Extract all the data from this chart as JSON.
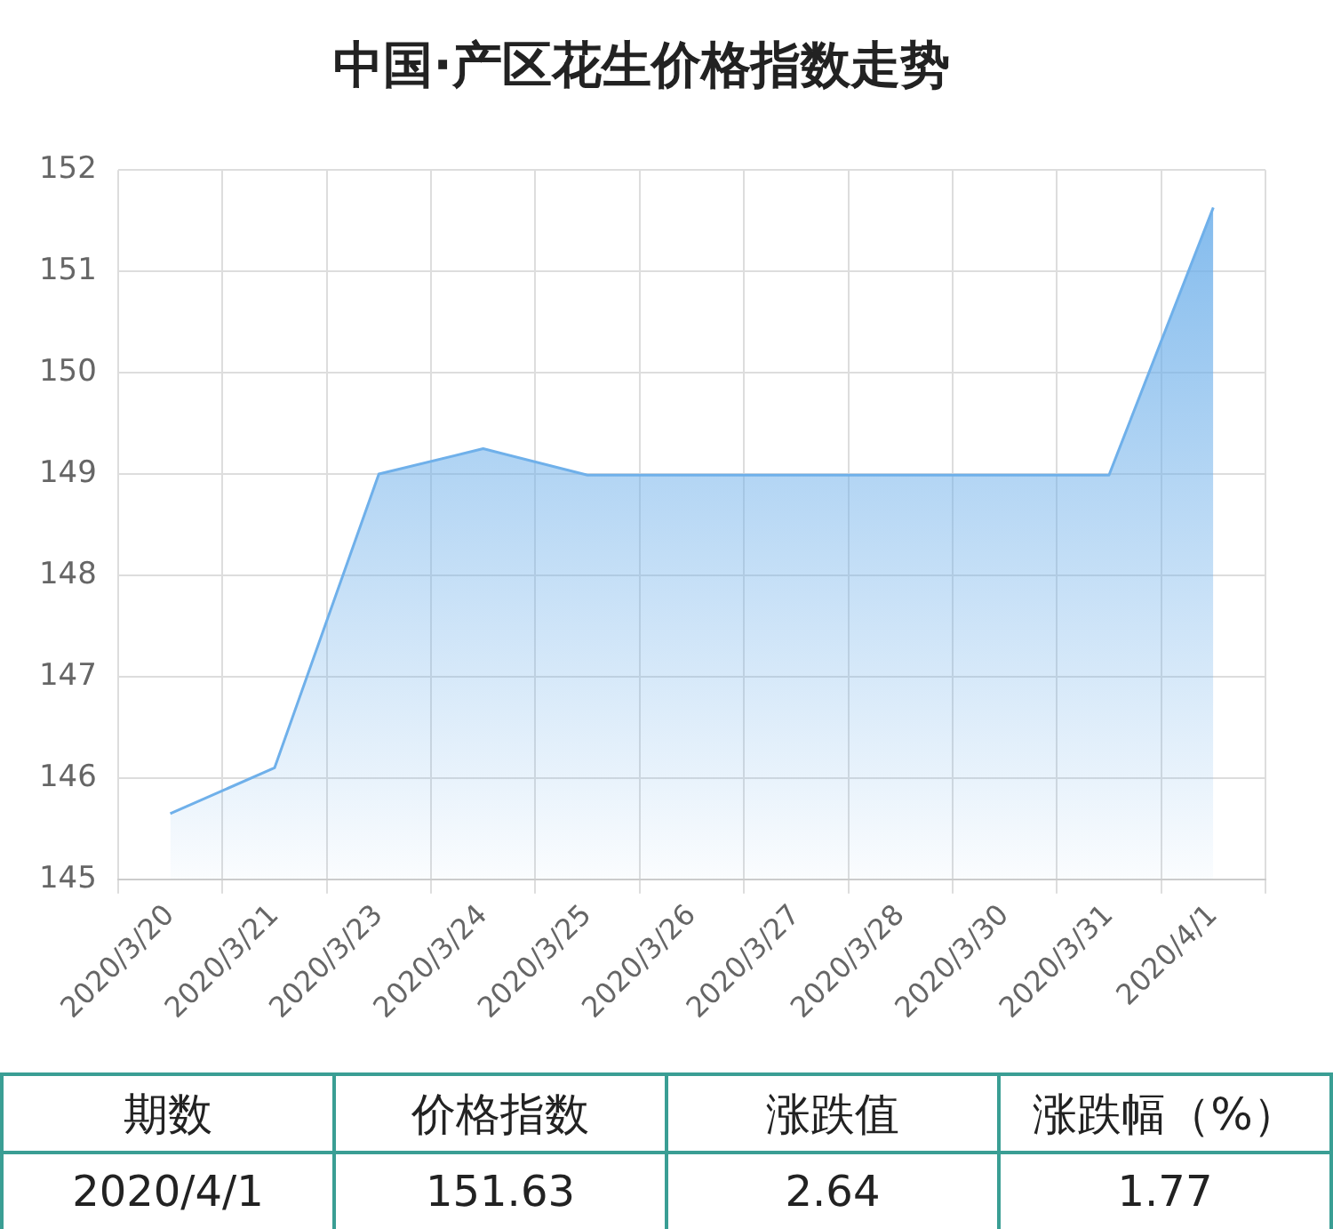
{
  "chart_data": {
    "type": "area",
    "title": "中国·产区花生价格指数走势",
    "categories": [
      "2020/3/20",
      "2020/3/21",
      "2020/3/23",
      "2020/3/24",
      "2020/3/25",
      "2020/3/26",
      "2020/3/27",
      "2020/3/28",
      "2020/3/30",
      "2020/3/31",
      "2020/4/1"
    ],
    "values": [
      145.65,
      146.1,
      149.0,
      149.25,
      148.99,
      148.99,
      148.99,
      148.99,
      148.99,
      148.99,
      151.63
    ],
    "color": "#6fb0ea",
    "ylim": [
      145,
      152
    ],
    "yticks": [
      145,
      146,
      147,
      148,
      149,
      150,
      151,
      152
    ],
    "grid": true,
    "legend": false,
    "marker": "none",
    "annotations": [
      "期数",
      "价格指数",
      "涨跌值",
      "涨跌幅（%）",
      "2020/4/1",
      "151.63",
      "2.64",
      "1.77"
    ]
  }
}
